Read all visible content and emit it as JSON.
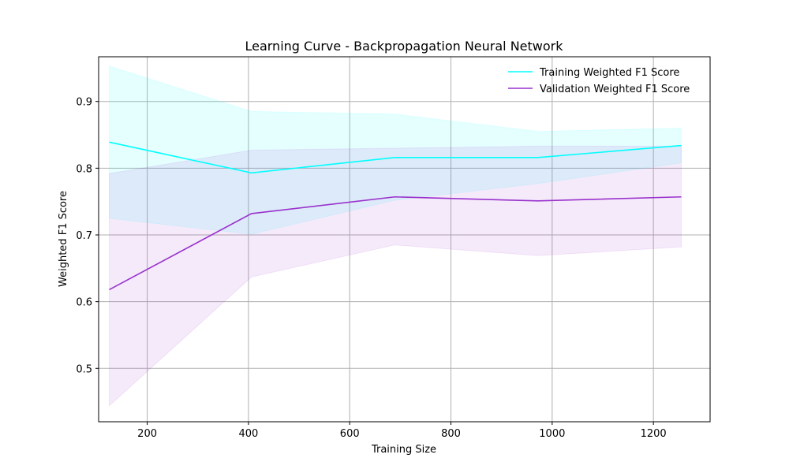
{
  "chart_data": {
    "type": "line",
    "title": "Learning Curve - Backpropagation Neural Network",
    "xlabel": "Training Size",
    "ylabel": "Weighted F1 Score",
    "xlim": [
      104,
      1312
    ],
    "ylim": [
      0.42,
      0.967
    ],
    "xticks": [
      200,
      400,
      600,
      800,
      1000,
      1200
    ],
    "yticks": [
      0.5,
      0.6,
      0.7,
      0.8,
      0.9
    ],
    "grid": true,
    "legend_position": "top-right",
    "x": [
      125,
      406,
      689,
      972,
      1255
    ],
    "series": [
      {
        "name": "Training Weighted F1 Score",
        "color": "#00FFFF",
        "values": [
          0.839,
          0.793,
          0.816,
          0.816,
          0.834
        ],
        "band_upper": [
          0.953,
          0.885,
          0.881,
          0.855,
          0.86
        ],
        "band_lower": [
          0.725,
          0.701,
          0.752,
          0.777,
          0.808
        ]
      },
      {
        "name": "Validation Weighted F1 Score",
        "color": "#9932CC",
        "values": [
          0.618,
          0.732,
          0.757,
          0.751,
          0.757
        ],
        "band_upper": [
          0.792,
          0.827,
          0.83,
          0.833,
          0.833
        ],
        "band_lower": [
          0.444,
          0.637,
          0.685,
          0.669,
          0.682
        ]
      }
    ]
  }
}
